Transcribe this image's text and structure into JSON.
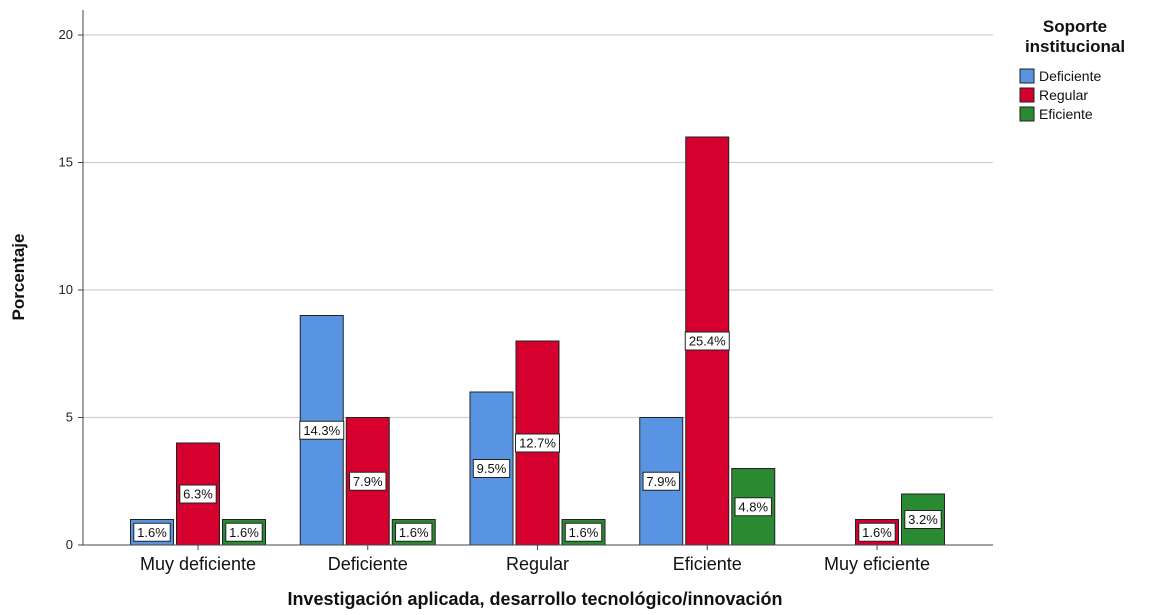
{
  "chart_data": {
    "type": "bar",
    "title": "",
    "xlabel": "Investigación aplicada, desarrollo tecnológico/innovación",
    "ylabel": "Porcentaje",
    "ylim": [
      0,
      20
    ],
    "yticks": [
      0,
      5,
      10,
      15,
      20
    ],
    "grid": true,
    "legend_placement": "right",
    "legend_title": "Soporte institucional",
    "legend_title_lines": [
      "Soporte",
      "institucional"
    ],
    "categories": [
      "Muy deficiente",
      "Deficiente",
      "Regular",
      "Eficiente",
      "Muy eficiente"
    ],
    "series": [
      {
        "name": "Deficiente",
        "color": "#5894e1",
        "values": [
          1,
          9,
          6,
          5,
          0
        ],
        "labels": [
          "1.6%",
          "14.3%",
          "9.5%",
          "7.9%",
          ""
        ]
      },
      {
        "name": "Regular",
        "color": "#d5002e",
        "values": [
          4,
          5,
          8,
          16,
          1
        ],
        "labels": [
          "6.3%",
          "7.9%",
          "12.7%",
          "25.4%",
          "1.6%"
        ]
      },
      {
        "name": "Eficiente",
        "color": "#2a8a32",
        "values": [
          1,
          1,
          1,
          3,
          2
        ],
        "labels": [
          "1.6%",
          "1.6%",
          "1.6%",
          "4.8%",
          "3.2%"
        ]
      }
    ]
  }
}
